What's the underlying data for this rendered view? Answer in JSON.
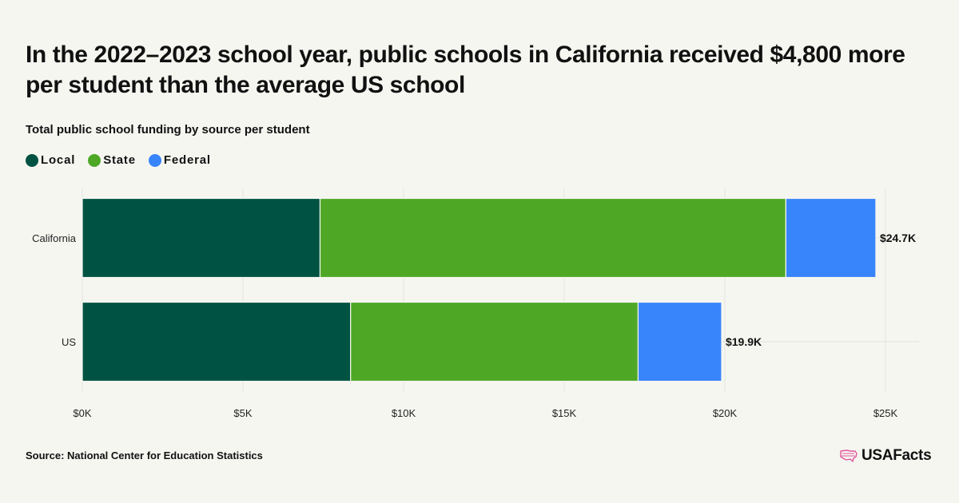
{
  "title": "In the 2022–2023 school year, public schools in California received $4,800 more per student than the average US school",
  "subtitle": "Total public school funding by source per student",
  "source": "Source: National Center for Education Statistics",
  "logo": {
    "text": "USAFacts",
    "icon": "us-map-icon",
    "color": "#e0569b"
  },
  "colors": {
    "Local": "#005342",
    "State": "#4ea826",
    "Federal": "#3884fb"
  },
  "legend": [
    {
      "label": "Local",
      "color": "#005342"
    },
    {
      "label": "State",
      "color": "#4ea826"
    },
    {
      "label": "Federal",
      "color": "#3884fb"
    }
  ],
  "chart_data": {
    "type": "bar",
    "orientation": "horizontal",
    "stacked": true,
    "categories": [
      "California",
      "US"
    ],
    "series": [
      {
        "name": "Local",
        "values": [
          7400,
          8350
        ]
      },
      {
        "name": "State",
        "values": [
          14500,
          8950
        ]
      },
      {
        "name": "Federal",
        "values": [
          2800,
          2600
        ]
      }
    ],
    "totals": [
      "$24.7K",
      "$19.9K"
    ],
    "xlim": [
      0,
      26000
    ],
    "xticks": [
      0,
      5000,
      10000,
      15000,
      20000,
      25000
    ],
    "xtick_labels": [
      "$0K",
      "$5K",
      "$10K",
      "$15K",
      "$20K",
      "$25K"
    ],
    "grid": true,
    "legend_position": "top-left"
  }
}
